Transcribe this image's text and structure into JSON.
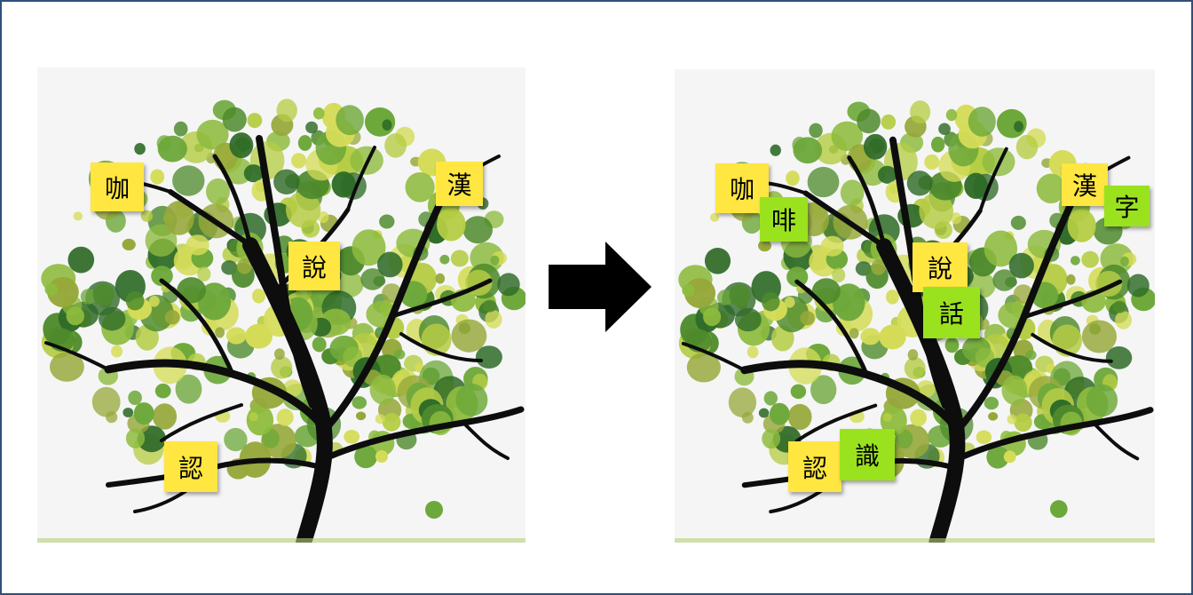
{
  "colors": {
    "frame_border": "#2f4f7a",
    "note_yellow": "#ffe640",
    "note_green": "#9be21e",
    "leaf_colors": [
      "#4e8a2c",
      "#6da83a",
      "#8dbb3e",
      "#b5cc45",
      "#d4dc57",
      "#2f6b28",
      "#96a83a"
    ]
  },
  "left_panel": {
    "notes": [
      {
        "text": "咖",
        "color": "yellow"
      },
      {
        "text": "漢",
        "color": "yellow"
      },
      {
        "text": "說",
        "color": "yellow"
      },
      {
        "text": "認",
        "color": "yellow"
      }
    ]
  },
  "arrow": {
    "icon": "right-arrow-icon"
  },
  "right_panel": {
    "notes": [
      {
        "text": "咖",
        "color": "yellow"
      },
      {
        "text": "啡",
        "color": "green"
      },
      {
        "text": "漢",
        "color": "yellow"
      },
      {
        "text": "字",
        "color": "green"
      },
      {
        "text": "說",
        "color": "yellow"
      },
      {
        "text": "話",
        "color": "green"
      },
      {
        "text": "認",
        "color": "yellow"
      },
      {
        "text": "識",
        "color": "green"
      }
    ]
  }
}
